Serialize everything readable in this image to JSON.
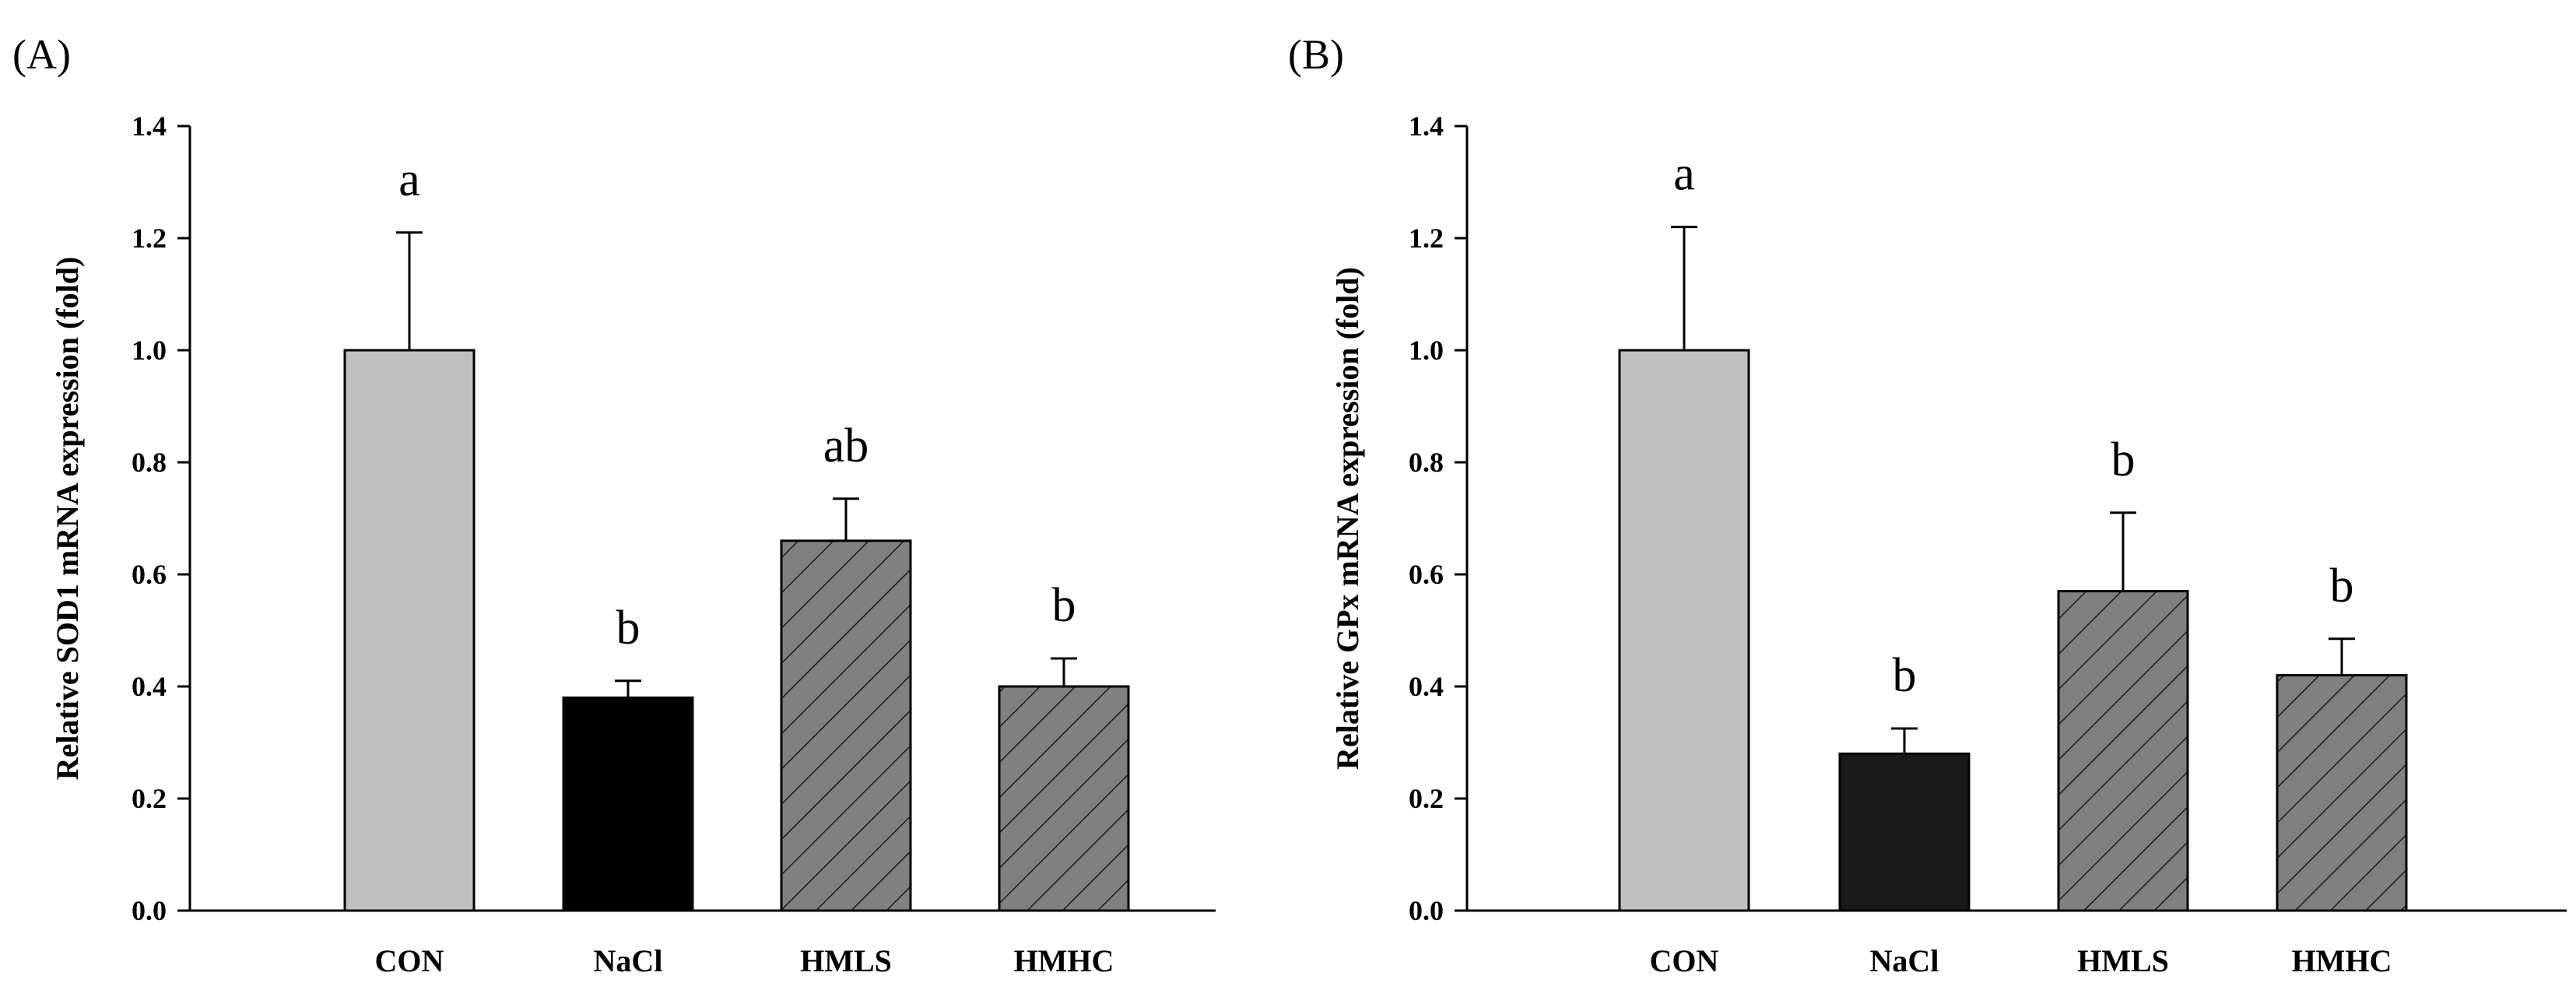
{
  "chart_data": [
    {
      "type": "bar",
      "panel_label": "(A)",
      "title": "",
      "xlabel": "",
      "ylabel": "Relative SOD1 mRNA expression (fold)",
      "ylim": [
        0,
        1.4
      ],
      "yticks": [
        "0.0",
        "0.2",
        "0.4",
        "0.6",
        "0.8",
        "1.0",
        "1.2",
        "1.4"
      ],
      "grid": false,
      "categories": [
        "CON",
        "NaCl",
        "HMLS",
        "HMHC"
      ],
      "values": [
        1.0,
        0.38,
        0.66,
        0.4
      ],
      "error_upper": [
        0.21,
        0.03,
        0.075,
        0.05
      ],
      "significance": [
        "a",
        "b",
        "ab",
        "b"
      ],
      "bar_colors": [
        "#c0c0c0",
        "#000000",
        "#808080",
        "#808080"
      ],
      "hatched": [
        false,
        false,
        true,
        true
      ]
    },
    {
      "type": "bar",
      "panel_label": "(B)",
      "title": "",
      "xlabel": "",
      "ylabel": "Relative GPx mRNA expression (fold)",
      "ylim": [
        0,
        1.4
      ],
      "yticks": [
        "0.0",
        "0.2",
        "0.4",
        "0.6",
        "0.8",
        "1.0",
        "1.2",
        "1.4"
      ],
      "grid": false,
      "categories": [
        "CON",
        "NaCl",
        "HMLS",
        "HMHC"
      ],
      "values": [
        1.0,
        0.28,
        0.57,
        0.42
      ],
      "error_upper": [
        0.22,
        0.045,
        0.14,
        0.065
      ],
      "significance": [
        "a",
        "b",
        "b",
        "b"
      ],
      "bar_colors": [
        "#c0c0c0",
        "#1a1a1a",
        "#808080",
        "#808080"
      ],
      "hatched": [
        false,
        false,
        true,
        true
      ]
    }
  ]
}
